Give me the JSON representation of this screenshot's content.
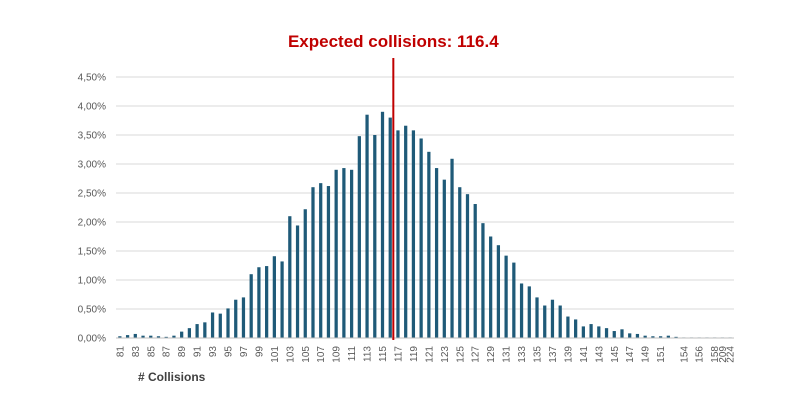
{
  "chart_data": {
    "type": "bar",
    "title": "",
    "xlabel": "# Collisions",
    "ylabel": "",
    "ylim": [
      0,
      0.045
    ],
    "y_ticks": [
      "0,00%",
      "0,50%",
      "1,00%",
      "1,50%",
      "2,00%",
      "2,50%",
      "3,00%",
      "3,50%",
      "4,00%",
      "4,50%"
    ],
    "grid": true,
    "legend": "none",
    "bar_color": "#1f5a78",
    "categories": [
      "81",
      "82",
      "83",
      "84",
      "85",
      "86",
      "87",
      "88",
      "89",
      "90",
      "91",
      "92",
      "93",
      "94",
      "95",
      "96",
      "97",
      "98",
      "99",
      "100",
      "101",
      "102",
      "103",
      "104",
      "105",
      "106",
      "107",
      "108",
      "109",
      "110",
      "111",
      "112",
      "113",
      "114",
      "115",
      "116",
      "117",
      "118",
      "119",
      "120",
      "121",
      "122",
      "123",
      "124",
      "125",
      "126",
      "127",
      "128",
      "129",
      "130",
      "131",
      "132",
      "133",
      "134",
      "135",
      "136",
      "137",
      "138",
      "139",
      "140",
      "141",
      "142",
      "143",
      "144",
      "145",
      "146",
      "147",
      "148",
      "149",
      "150",
      "151",
      "152",
      "153",
      "154",
      "155",
      "156",
      "157",
      "158",
      "209",
      "224"
    ],
    "x_tick_labels_shown": [
      "81",
      "83",
      "85",
      "87",
      "89",
      "91",
      "93",
      "95",
      "97",
      "99",
      "101",
      "103",
      "105",
      "107",
      "109",
      "111",
      "113",
      "115",
      "117",
      "119",
      "121",
      "123",
      "125",
      "127",
      "129",
      "131",
      "133",
      "135",
      "137",
      "139",
      "141",
      "143",
      "145",
      "147",
      "149",
      "151",
      "154",
      "156",
      "158",
      "209",
      "224"
    ],
    "values": [
      0.0003,
      0.0005,
      0.0007,
      0.0004,
      0.0004,
      0.0003,
      0.0002,
      0.0004,
      0.0011,
      0.0017,
      0.0024,
      0.0027,
      0.0044,
      0.0042,
      0.0051,
      0.0066,
      0.007,
      0.011,
      0.0122,
      0.0124,
      0.0141,
      0.0132,
      0.021,
      0.0194,
      0.0222,
      0.026,
      0.0267,
      0.0262,
      0.029,
      0.0293,
      0.029,
      0.0348,
      0.0385,
      0.035,
      0.039,
      0.038,
      0.0358,
      0.0366,
      0.0358,
      0.0344,
      0.0321,
      0.0293,
      0.0273,
      0.0309,
      0.026,
      0.0248,
      0.0231,
      0.0198,
      0.0175,
      0.016,
      0.0142,
      0.013,
      0.0094,
      0.0089,
      0.007,
      0.0056,
      0.0066,
      0.0056,
      0.0037,
      0.0032,
      0.002,
      0.0024,
      0.002,
      0.0017,
      0.0012,
      0.0015,
      0.0008,
      0.0007,
      0.0004,
      0.0003,
      0.0003,
      0.0004,
      0.0002,
      0.0001,
      0.0001,
      0.0001,
      0.0001,
      0.0001,
      0.0001,
      0.0001
    ],
    "annotation": {
      "text": "Expected collisions: 116.4",
      "x_value": 116.4,
      "color": "#c00000"
    }
  }
}
